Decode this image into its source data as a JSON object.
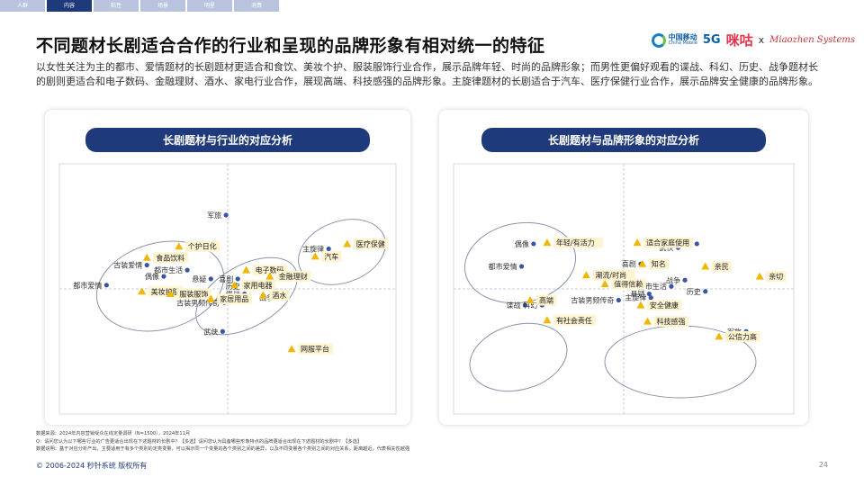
{
  "nav": {
    "tabs": [
      "人群",
      "内容",
      "粘性",
      "场景",
      "明星",
      "消费"
    ],
    "active_index": 1
  },
  "title": "不同题材长剧适合合作的行业和呈现的品牌形象有相对统一的特征",
  "logos": {
    "china_mobile_cn": "中国移动",
    "china_mobile_en": "China Mobile",
    "five_g": "5G",
    "migu": "咪咕",
    "x": "x",
    "miaozhen": "Miaozhen Systems"
  },
  "summary": "以女性关注为主的都市、爱情题材的长剧题材更适合和食饮、美妆个护、服装服饰行业合作，展示品牌年轻、时尚的品牌形象；而男性更偏好观看的谍战、科幻、历史、战争题材长的剧则更适合和电子数码、金融理财、酒水、家电行业合作，展现高端、科技感强的品牌形象。主旋律题材的长剧适合于汽车、医疗保健行业合作，展示品牌安全健康的品牌形象。",
  "colors": {
    "navy": "#1f3a7a",
    "point_blue": "#3a55a4",
    "triangle_gold": "#f2b705",
    "label_fill": "#fff4d1",
    "ellipse_stroke": "#8a94ad"
  },
  "chart_data": [
    {
      "type": "scatter",
      "title": "长剧题材与行业的对应分析",
      "xlabel": "",
      "ylabel": "",
      "xlim": [
        -1,
        1
      ],
      "ylim": [
        -1,
        1
      ],
      "grid": false,
      "series": [
        {
          "name": "",
          "marker": "circle",
          "points": [
            {
              "label": "军旅",
              "x": -0.01,
              "y": 0.59
            },
            {
              "label": "主旋律",
              "x": 0.6,
              "y": 0.32
            },
            {
              "label": "古装爱情",
              "x": -0.48,
              "y": 0.19
            },
            {
              "label": "都市生活",
              "x": -0.24,
              "y": 0.15
            },
            {
              "label": "偶像",
              "x": -0.38,
              "y": 0.1
            },
            {
              "label": "悬疑",
              "x": -0.1,
              "y": 0.08
            },
            {
              "label": "喜剧",
              "x": 0.06,
              "y": 0.08
            },
            {
              "label": "都市爱情",
              "x": -0.72,
              "y": 0.03
            },
            {
              "label": "历史",
              "x": 0.1,
              "y": 0.02
            },
            {
              "label": "科幻",
              "x": 0.19,
              "y": 0.02
            },
            {
              "label": "谍战",
              "x": 0.1,
              "y": -0.04
            },
            {
              "label": "战争",
              "x": 0.3,
              "y": -0.07
            },
            {
              "label": "古装男频传奇",
              "x": -0.02,
              "y": -0.11
            },
            {
              "label": "武侠",
              "x": -0.03,
              "y": -0.34
            }
          ]
        },
        {
          "name": "",
          "marker": "triangle",
          "points": [
            {
              "label": "医疗保健",
              "x": 0.71,
              "y": 0.36
            },
            {
              "label": "个护日化",
              "x": -0.29,
              "y": 0.34
            },
            {
              "label": "汽车",
              "x": 0.52,
              "y": 0.26
            },
            {
              "label": "食品饮料",
              "x": -0.48,
              "y": 0.25
            },
            {
              "label": "电子数码",
              "x": 0.11,
              "y": 0.15
            },
            {
              "label": "金融理财",
              "x": 0.25,
              "y": 0.1
            },
            {
              "label": "家用电器",
              "x": 0.04,
              "y": 0.03
            },
            {
              "label": "美妆护肤",
              "x": -0.51,
              "y": -0.02
            },
            {
              "label": "服装服饰",
              "x": -0.34,
              "y": -0.04
            },
            {
              "label": "酒水",
              "x": 0.21,
              "y": -0.05
            },
            {
              "label": "家居用品",
              "x": -0.1,
              "y": -0.08
            },
            {
              "label": "网服平台",
              "x": 0.38,
              "y": -0.48
            }
          ]
        }
      ]
    },
    {
      "type": "scatter",
      "title": "长剧题材与品牌形象的对应分析",
      "xlabel": "",
      "ylabel": "",
      "xlim": [
        -1,
        1
      ],
      "ylim": [
        -1,
        1
      ],
      "grid": false,
      "series": [
        {
          "name": "",
          "marker": "circle",
          "points": [
            {
              "label": "偶像",
              "x": -0.53,
              "y": 0.36
            },
            {
              "label": "古装爱情",
              "x": 0.43,
              "y": 0.36
            },
            {
              "label": "武侠",
              "x": 0.32,
              "y": 0.33
            },
            {
              "label": "都市爱情",
              "x": -0.6,
              "y": 0.18
            },
            {
              "label": "喜剧",
              "x": 0.1,
              "y": 0.2
            },
            {
              "label": "战争",
              "x": 0.36,
              "y": 0.07
            },
            {
              "label": "都市生活",
              "x": 0.28,
              "y": 0.02
            },
            {
              "label": "历史",
              "x": 0.48,
              "y": -0.02
            },
            {
              "label": "悬疑",
              "x": 0.15,
              "y": -0.04
            },
            {
              "label": "主旋律",
              "x": 0.16,
              "y": -0.07
            },
            {
              "label": "古装男频传奇",
              "x": -0.03,
              "y": -0.09
            },
            {
              "label": "谍战",
              "x": -0.58,
              "y": -0.13
            },
            {
              "label": "科幻",
              "x": -0.48,
              "y": -0.13
            },
            {
              "label": "军旅",
              "x": 0.72,
              "y": -0.34
            }
          ]
        },
        {
          "name": "",
          "marker": "triangle",
          "points": [
            {
              "label": "年轻/有活力",
              "x": -0.45,
              "y": 0.37
            },
            {
              "label": "适合家庭使用",
              "x": 0.08,
              "y": 0.37
            },
            {
              "label": "知名",
              "x": 0.11,
              "y": 0.2
            },
            {
              "label": "亲民",
              "x": 0.48,
              "y": 0.18
            },
            {
              "label": "潮流/时尚",
              "x": -0.22,
              "y": 0.11
            },
            {
              "label": "亲切",
              "x": 0.8,
              "y": 0.1
            },
            {
              "label": "值得信赖",
              "x": -0.11,
              "y": 0.04
            },
            {
              "label": "高端",
              "x": -0.55,
              "y": -0.09
            },
            {
              "label": "安全健康",
              "x": 0.1,
              "y": -0.13
            },
            {
              "label": "有社会责任",
              "x": -0.45,
              "y": -0.25
            },
            {
              "label": "科技感强",
              "x": 0.14,
              "y": -0.26
            },
            {
              "label": "公信力高",
              "x": 0.56,
              "y": -0.38
            }
          ]
        }
      ]
    }
  ],
  "footer": {
    "source": "数据来源：2024年内容营销受众在线定量调研（N=1500），2024年11月",
    "question": "Q：请问您认为以下哪些行业的广告更适合出现在下述题材的长剧中？【多选】请问您认为具备哪些形象特点的品牌更适合出现在下述题材的长剧中？【多选】",
    "note": "数据说明：基于对应分析产出，主要适用于有多个类别的定类变量，可以揭示同一个变量的各个类别之间的差异，以及不同变量各个类别之间的对应关系。距离越近，代表相关性越强"
  },
  "copyright": "© 2006-2024 秒针系统 版权所有",
  "page_number": "24"
}
